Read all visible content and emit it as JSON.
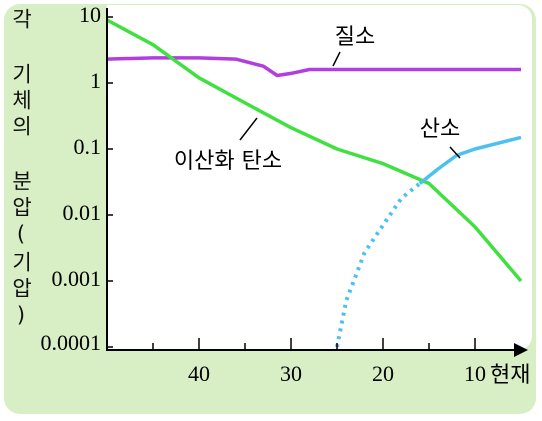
{
  "chart_data": {
    "type": "line",
    "y_label": "각 기체의 분압(기압)",
    "x_end_label": "현재",
    "xlim": [
      50,
      5
    ],
    "xticks": [
      40,
      30,
      20,
      10
    ],
    "xminorticks": [
      45,
      35,
      25,
      15
    ],
    "ylim": [
      0.0001,
      10
    ],
    "yticks": [
      10,
      1,
      0.1,
      0.01,
      0.001,
      0.0001
    ],
    "log_y": true,
    "series": [
      {
        "name": "질소",
        "color": "#b23ee0",
        "x": [
          50,
          45,
          40,
          36,
          33,
          31.5,
          30,
          28,
          25,
          20,
          15,
          10,
          5
        ],
        "values": [
          2.3,
          2.4,
          2.4,
          2.3,
          1.8,
          1.3,
          1.4,
          1.6,
          1.6,
          1.6,
          1.6,
          1.6,
          1.6
        ]
      },
      {
        "name": "이산화 탄소",
        "color": "#3fe03f",
        "x": [
          50,
          45,
          40,
          35,
          30,
          25,
          20,
          15,
          10,
          5
        ],
        "values": [
          9,
          3.8,
          1.2,
          0.5,
          0.21,
          0.1,
          0.06,
          0.03,
          0.0066,
          0.001
        ]
      },
      {
        "name": "산소",
        "color": "#4cc0f0",
        "x": [
          25,
          24,
          22,
          20,
          18,
          16,
          14,
          12,
          10,
          5
        ],
        "values": [
          0.0001,
          0.0005,
          0.0027,
          0.007,
          0.018,
          0.03,
          0.05,
          0.08,
          0.1,
          0.15
        ],
        "dotted": [
          true,
          true,
          true,
          true,
          true,
          false,
          false,
          false,
          false,
          false
        ]
      }
    ]
  }
}
